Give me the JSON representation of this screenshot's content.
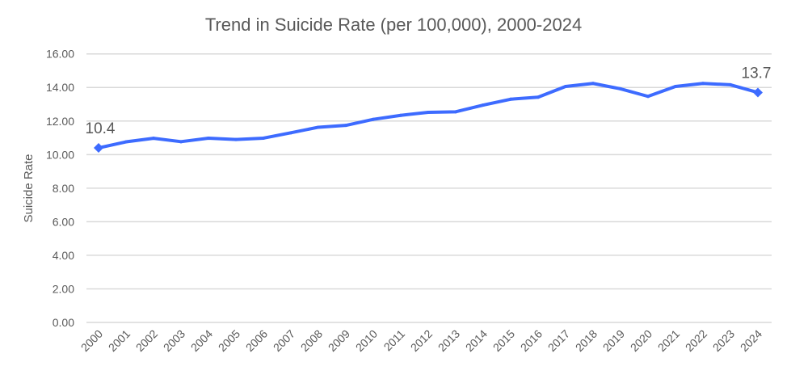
{
  "chart_data": {
    "type": "line",
    "title": "Trend in Suicide Rate (per 100,000), 2000-2024",
    "xlabel": "",
    "ylabel": "Suicide Rate",
    "ylim": [
      0,
      16
    ],
    "yticks": [
      "0.00",
      "2.00",
      "4.00",
      "6.00",
      "8.00",
      "10.00",
      "12.00",
      "14.00",
      "16.00"
    ],
    "grid": true,
    "categories": [
      "2000",
      "2001",
      "2002",
      "2003",
      "2004",
      "2005",
      "2006",
      "2007",
      "2008",
      "2009",
      "2010",
      "2011",
      "2012",
      "2013",
      "2014",
      "2015",
      "2016",
      "2017",
      "2018",
      "2019",
      "2020",
      "2021",
      "2022",
      "2023",
      "2024"
    ],
    "values": [
      10.4,
      10.76,
      10.97,
      10.77,
      10.98,
      10.9,
      10.98,
      11.3,
      11.63,
      11.74,
      12.1,
      12.34,
      12.52,
      12.55,
      12.95,
      13.3,
      13.42,
      14.06,
      14.24,
      13.92,
      13.47,
      14.06,
      14.24,
      14.16,
      13.7
    ],
    "annotations": [
      {
        "category": "2000",
        "label": "10.4"
      },
      {
        "category": "2024",
        "label": "13.7"
      }
    ],
    "colors": {
      "line": "#3d6bff",
      "grid": "#d9d9d9",
      "text": "#595959"
    }
  }
}
